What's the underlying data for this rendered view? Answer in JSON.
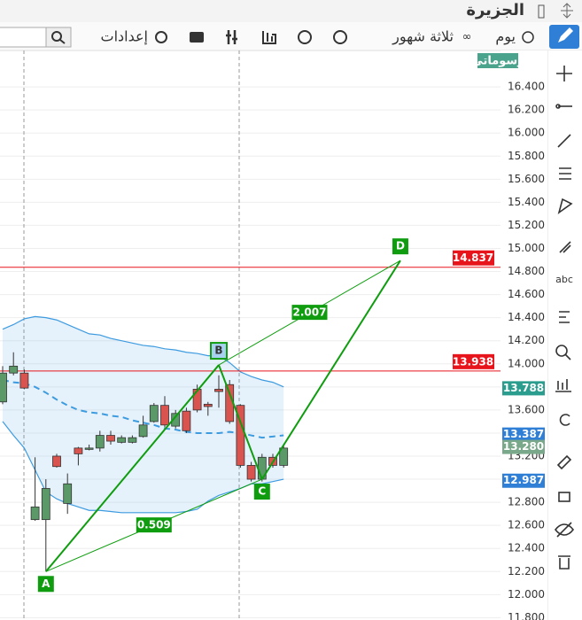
{
  "header": {
    "title": "الجزيرة"
  },
  "toolbar": {
    "interval": "يوم",
    "range": "ثلاثة شهور",
    "settings": "إعدادات"
  },
  "chart_data": {
    "type": "candlestick",
    "watermark": "رسوماتي",
    "ylim": [
      11.78,
      16.7
    ],
    "yticks": [
      {
        "value": 11.8,
        "label": "11.800"
      },
      {
        "value": 12.0,
        "label": "12.000"
      },
      {
        "value": 12.2,
        "label": "12.200"
      },
      {
        "value": 12.4,
        "label": "12.400"
      },
      {
        "value": 12.6,
        "label": "12.600"
      },
      {
        "value": 12.8,
        "label": "12.800"
      },
      {
        "value": 13.0,
        "label": "13.000"
      },
      {
        "value": 13.2,
        "label": "13.200"
      },
      {
        "value": 13.4,
        "label": "13.400"
      },
      {
        "value": 13.6,
        "label": "13.600"
      },
      {
        "value": 13.8,
        "label": "13.800"
      },
      {
        "value": 14.0,
        "label": "14.000"
      },
      {
        "value": 14.2,
        "label": "14.200"
      },
      {
        "value": 14.4,
        "label": "14.400"
      },
      {
        "value": 14.6,
        "label": "14.600"
      },
      {
        "value": 14.8,
        "label": "14.800"
      },
      {
        "value": 15.0,
        "label": "15.000"
      },
      {
        "value": 15.2,
        "label": "15.200"
      },
      {
        "value": 15.4,
        "label": "15.400"
      },
      {
        "value": 15.6,
        "label": "15.600"
      },
      {
        "value": 15.8,
        "label": "15.800"
      },
      {
        "value": 16.0,
        "label": "16.000"
      },
      {
        "value": 16.2,
        "label": "16.200"
      },
      {
        "value": 16.4,
        "label": "16.400"
      }
    ],
    "up_color": "#5b9a68",
    "down_color": "#d9534f",
    "candles": {
      "open": [
        13.67,
        13.92,
        13.92,
        12.65,
        12.65,
        13.2,
        12.79,
        13.27,
        13.26,
        13.27,
        13.38,
        13.32,
        13.32,
        13.37,
        13.5,
        13.64,
        13.46,
        13.59,
        13.78,
        13.65,
        13.78,
        13.82,
        13.64,
        13.12,
        13.0,
        13.19,
        13.12
      ],
      "high": [
        13.98,
        14.1,
        13.95,
        13.19,
        13.0,
        13.22,
        13.05,
        13.28,
        13.3,
        13.42,
        13.42,
        13.38,
        13.38,
        13.55,
        13.66,
        13.72,
        13.6,
        13.62,
        13.82,
        13.67,
        13.9,
        13.86,
        13.65,
        13.15,
        13.22,
        13.22,
        13.29
      ],
      "low": [
        13.65,
        13.9,
        13.78,
        12.64,
        12.2,
        13.1,
        12.7,
        13.12,
        13.25,
        13.24,
        13.3,
        13.31,
        13.31,
        13.36,
        13.49,
        13.45,
        13.44,
        13.4,
        13.58,
        13.55,
        13.62,
        13.48,
        13.1,
        12.98,
        12.98,
        13.1,
        13.1
      ],
      "close": [
        13.92,
        13.98,
        13.79,
        12.76,
        12.92,
        13.11,
        12.96,
        13.22,
        13.27,
        13.38,
        13.33,
        13.36,
        13.36,
        13.47,
        13.64,
        13.47,
        13.57,
        13.42,
        13.6,
        13.63,
        13.76,
        13.5,
        13.12,
        13.0,
        13.19,
        13.12,
        13.27
      ]
    },
    "bands": {
      "color": "#3d9be0",
      "upper": [
        14.3,
        14.34,
        14.39,
        14.41,
        14.4,
        14.38,
        14.34,
        14.3,
        14.26,
        14.25,
        14.22,
        14.2,
        14.18,
        14.16,
        14.15,
        14.13,
        14.12,
        14.1,
        14.09,
        14.07,
        14.07,
        14.01,
        13.93,
        13.89,
        13.86,
        13.84,
        13.8
      ],
      "middle": [
        13.86,
        13.84,
        13.83,
        13.8,
        13.75,
        13.69,
        13.64,
        13.6,
        13.58,
        13.57,
        13.55,
        13.54,
        13.51,
        13.49,
        13.47,
        13.44,
        13.43,
        13.41,
        13.4,
        13.4,
        13.4,
        13.41,
        13.4,
        13.38,
        13.36,
        13.37,
        13.38
      ],
      "lower": [
        13.5,
        13.38,
        13.27,
        13.08,
        12.89,
        12.83,
        12.79,
        12.76,
        12.73,
        12.73,
        12.72,
        12.71,
        12.71,
        12.71,
        12.71,
        12.71,
        12.71,
        12.72,
        12.74,
        12.81,
        12.86,
        12.89,
        12.92,
        12.96,
        12.96,
        12.98,
        13.0
      ]
    },
    "hlines": [
      {
        "value": 14.837,
        "color": "#e8141b"
      },
      {
        "value": 13.938,
        "color": "#e8141b"
      }
    ],
    "price_labels": [
      {
        "value": 13.788,
        "color": "#2a9d8f"
      },
      {
        "value": 13.387,
        "color": "#2f7fd6"
      },
      {
        "value": {
          "value": 13.28,
          "label": "13.280"
        },
        "color": "#7aa88a"
      },
      {
        "value": 12.987,
        "color": "#2f7fd6"
      }
    ],
    "pattern": {
      "color": "#0f9d0f",
      "points": [
        {
          "name": "A",
          "x": 4,
          "y": 12.2
        },
        {
          "name": "B",
          "x": 20,
          "y": 13.99
        },
        {
          "name": "C",
          "x": 24,
          "y": 13.0
        },
        {
          "name": "D",
          "x": 36.8,
          "y": 14.895
        }
      ],
      "ratios": [
        {
          "value": 0.509,
          "from": "A",
          "to": "C"
        },
        {
          "value": 2.007,
          "from": "B",
          "to": "D"
        }
      ]
    }
  }
}
